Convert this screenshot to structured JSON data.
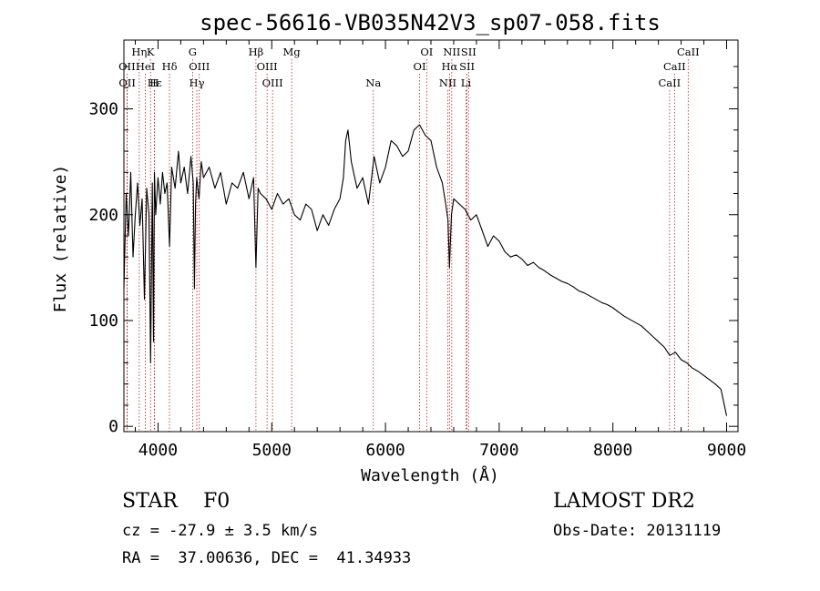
{
  "chart_data": {
    "type": "line",
    "title": "spec-56616-VB035N42V3_sp07-058.fits",
    "xlabel": "Wavelength (Å)",
    "ylabel": "Flux (relative)",
    "xlim": [
      3700,
      9100
    ],
    "ylim": [
      -5,
      365
    ],
    "xticks": [
      4000,
      5000,
      6000,
      7000,
      8000,
      9000
    ],
    "yticks": [
      0,
      100,
      200,
      300
    ],
    "line_color": "#000000",
    "marker_color": "#b22222",
    "series": [
      {
        "x": [
          3700,
          3720,
          3740,
          3760,
          3780,
          3800,
          3820,
          3840,
          3860,
          3880,
          3900,
          3920,
          3935,
          3950,
          3960,
          3968,
          3980,
          4000,
          4020,
          4040,
          4060,
          4080,
          4101,
          4120,
          4150,
          4180,
          4200,
          4230,
          4260,
          4290,
          4310,
          4320,
          4330,
          4340,
          4360,
          4380,
          4400,
          4450,
          4500,
          4550,
          4600,
          4650,
          4700,
          4750,
          4800,
          4840,
          4861,
          4880,
          4900,
          4950,
          5000,
          5050,
          5100,
          5150,
          5200,
          5250,
          5300,
          5350,
          5400,
          5450,
          5500,
          5550,
          5600,
          5630,
          5650,
          5670,
          5700,
          5720,
          5750,
          5800,
          5850,
          5900,
          5950,
          6000,
          6050,
          6100,
          6150,
          6200,
          6250,
          6300,
          6350,
          6400,
          6450,
          6500,
          6530,
          6550,
          6563,
          6580,
          6600,
          6650,
          6700,
          6750,
          6800,
          6850,
          6900,
          6950,
          7000,
          7050,
          7100,
          7150,
          7200,
          7250,
          7300,
          7350,
          7400,
          7450,
          7500,
          7550,
          7600,
          7650,
          7700,
          7750,
          7800,
          7850,
          7900,
          7950,
          8000,
          8050,
          8100,
          8150,
          8200,
          8250,
          8300,
          8350,
          8400,
          8450,
          8500,
          8550,
          8600,
          8650,
          8700,
          8750,
          8800,
          8850,
          8900,
          8950,
          9000
        ],
        "y": [
          130,
          220,
          180,
          240,
          160,
          200,
          230,
          190,
          215,
          120,
          225,
          200,
          60,
          230,
          80,
          240,
          200,
          235,
          210,
          240,
          220,
          230,
          170,
          245,
          225,
          260,
          230,
          245,
          220,
          255,
          230,
          130,
          210,
          235,
          215,
          250,
          235,
          245,
          225,
          240,
          210,
          230,
          225,
          240,
          215,
          235,
          150,
          225,
          220,
          215,
          205,
          220,
          210,
          215,
          200,
          195,
          210,
          205,
          185,
          200,
          190,
          205,
          215,
          235,
          270,
          280,
          250,
          240,
          225,
          235,
          210,
          255,
          230,
          245,
          270,
          265,
          255,
          260,
          280,
          285,
          275,
          270,
          245,
          230,
          210,
          195,
          150,
          200,
          215,
          210,
          205,
          195,
          200,
          185,
          170,
          180,
          175,
          165,
          160,
          162,
          158,
          152,
          155,
          150,
          147,
          143,
          140,
          137,
          135,
          132,
          128,
          126,
          123,
          120,
          117,
          115,
          112,
          108,
          104,
          101,
          98,
          95,
          90,
          85,
          80,
          75,
          67,
          70,
          63,
          60,
          55,
          52,
          48,
          44,
          40,
          35,
          10
        ]
      }
    ],
    "line_labels": [
      {
        "text": "Hη",
        "x": 3835,
        "row": 0
      },
      {
        "text": "K",
        "x": 3934,
        "row": 0
      },
      {
        "text": "G",
        "x": 4304,
        "row": 0
      },
      {
        "text": "Hβ",
        "x": 4861,
        "row": 0
      },
      {
        "text": "Mg",
        "x": 5175,
        "row": 0
      },
      {
        "text": "OI",
        "x": 6363,
        "row": 0
      },
      {
        "text": "NII",
        "x": 6583,
        "row": 0
      },
      {
        "text": "SII",
        "x": 6731,
        "row": 0
      },
      {
        "text": "CaII",
        "x": 8662,
        "row": 0
      },
      {
        "text": "OII",
        "x": 3727,
        "row": 1
      },
      {
        "text": "HeI",
        "x": 3889,
        "row": 1
      },
      {
        "text": "Hδ",
        "x": 4101,
        "row": 1
      },
      {
        "text": "OIII",
        "x": 4363,
        "row": 1
      },
      {
        "text": "OIII",
        "x": 4959,
        "row": 1
      },
      {
        "text": "OI",
        "x": 6300,
        "row": 1
      },
      {
        "text": "Hα",
        "x": 6563,
        "row": 1
      },
      {
        "text": "SII",
        "x": 6717,
        "row": 1
      },
      {
        "text": "CaII",
        "x": 8542,
        "row": 1
      },
      {
        "text": "OII",
        "x": 3729,
        "row": 2
      },
      {
        "text": "Hε",
        "x": 3970,
        "row": 2
      },
      {
        "text": "H",
        "x": 3968,
        "row": 2
      },
      {
        "text": "Hγ",
        "x": 4341,
        "row": 2
      },
      {
        "text": "OIII",
        "x": 5007,
        "row": 2
      },
      {
        "text": "Na",
        "x": 5893,
        "row": 2
      },
      {
        "text": "NII",
        "x": 6548,
        "row": 2
      },
      {
        "text": "Li",
        "x": 6708,
        "row": 2
      },
      {
        "text": "CaII",
        "x": 8498,
        "row": 2
      }
    ]
  },
  "info": {
    "class_line": "STAR    F0",
    "cz_line": "cz = -27.9 ± 3.5 km/s",
    "radec_line": "RA =  37.00636, DEC =  41.34933",
    "survey": "LAMOST DR2",
    "obs_date": "Obs-Date: 20131119"
  }
}
